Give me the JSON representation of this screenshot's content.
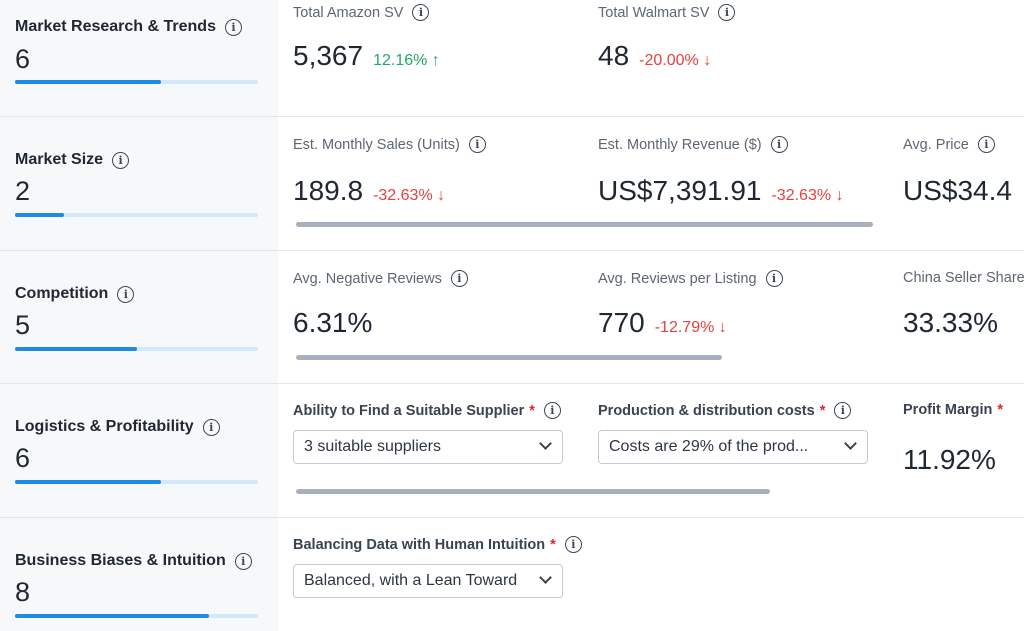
{
  "sections": {
    "research": {
      "title": "Market Research & Trends",
      "score": "6",
      "score_fraction": 0.6,
      "metrics": [
        {
          "label": "Total Amazon SV",
          "value": "5,367",
          "change": "12.16% ↑",
          "direction": "up"
        },
        {
          "label": "Total Walmart SV",
          "value": "48",
          "change": "-20.00% ↓",
          "direction": "down"
        }
      ]
    },
    "size": {
      "title": "Market Size",
      "score": "2",
      "score_fraction": 0.2,
      "metrics": [
        {
          "label": "Est. Monthly Sales (Units)",
          "value": "189.8",
          "change": "-32.63% ↓",
          "direction": "down"
        },
        {
          "label": "Est. Monthly Revenue ($)",
          "value": "US$7,391.91",
          "change": "-32.63% ↓",
          "direction": "down"
        },
        {
          "label": "Avg. Price",
          "value": "US$34.4",
          "change": "",
          "direction": ""
        }
      ]
    },
    "competition": {
      "title": "Competition",
      "score": "5",
      "score_fraction": 0.5,
      "metrics": [
        {
          "label": "Avg. Negative Reviews",
          "value": "6.31%",
          "change": "",
          "direction": ""
        },
        {
          "label": "Avg. Reviews per Listing",
          "value": "770",
          "change": "-12.79% ↓",
          "direction": "down"
        },
        {
          "label": "China Seller Share",
          "value": "33.33%",
          "change": "",
          "direction": ""
        }
      ]
    },
    "logistics": {
      "title": "Logistics & Profitability",
      "score": "6",
      "score_fraction": 0.6,
      "fields": [
        {
          "label": "Ability to Find a Suitable Supplier",
          "required": "*",
          "value": "3 suitable suppliers"
        },
        {
          "label": "Production & distribution costs",
          "required": "*",
          "value": "Costs are 29% of the prod..."
        },
        {
          "label": "Profit Margin",
          "required": "*",
          "value": "11.92%"
        }
      ]
    },
    "biases": {
      "title": "Business Biases & Intuition",
      "score": "8",
      "score_fraction": 0.8,
      "fields": [
        {
          "label": "Balancing Data with Human Intuition",
          "required": "*",
          "value": "Balanced, with a Lean Toward"
        }
      ]
    }
  },
  "icons": {
    "info": "info-circle-icon",
    "dropdown": "chevron-down-icon"
  },
  "colors": {
    "score_fill": "#1e8be0",
    "score_track": "#d3e8f8",
    "up": "#24a866",
    "down": "#e4413f",
    "required": "#e02424"
  }
}
